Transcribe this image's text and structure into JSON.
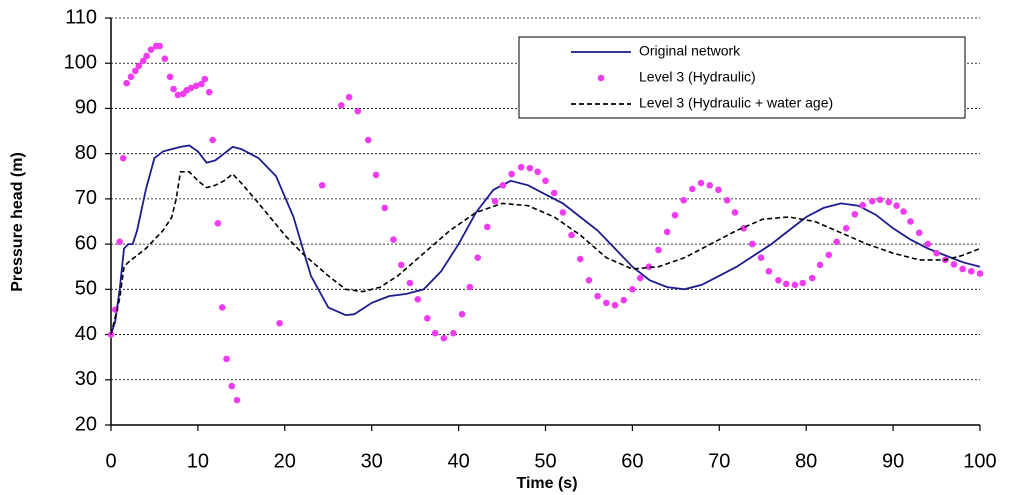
{
  "chart_data": {
    "type": "line",
    "x_label": "Time (s)",
    "y_label": "Pressure head (m)",
    "xlim": [
      0,
      100
    ],
    "xticks": [
      0,
      10,
      20,
      30,
      40,
      50,
      60,
      70,
      80,
      90,
      100
    ],
    "ylim": [
      20,
      110
    ],
    "yticks": [
      20,
      30,
      40,
      50,
      60,
      70,
      80,
      90,
      100,
      110
    ],
    "grid": true,
    "legend": "upper right",
    "series": [
      {
        "name": "Original network",
        "color": "#1c1c8c",
        "style": "solid",
        "x": [
          0,
          0.5,
          1,
          1.5,
          2,
          2.5,
          3,
          4,
          5,
          6,
          7,
          8,
          9,
          10,
          11,
          12,
          13,
          14,
          15,
          17,
          19,
          21,
          23,
          25,
          27,
          28,
          30,
          32,
          34,
          36,
          38,
          40,
          42,
          44,
          46,
          48,
          50,
          52,
          54,
          56,
          58,
          60,
          62,
          64,
          66,
          68,
          70,
          72,
          74,
          76,
          78,
          80,
          82,
          84,
          86,
          88,
          90,
          92,
          94,
          96,
          98,
          100
        ],
        "values": [
          40,
          43,
          50,
          59,
          60,
          60,
          63,
          72,
          79,
          80.5,
          81,
          81.5,
          81.8,
          80.5,
          78,
          78.5,
          80,
          81.5,
          81,
          79,
          75,
          66,
          53,
          46,
          44.3,
          44.5,
          47,
          48.5,
          49,
          50,
          54,
          60,
          67,
          72,
          74,
          73,
          71,
          69,
          66,
          63,
          59,
          55,
          52,
          50.5,
          50,
          51,
          53,
          55,
          57.5,
          60,
          63,
          66,
          68,
          69,
          68.5,
          66.5,
          63.5,
          61,
          59,
          57.5,
          56,
          55
        ]
      },
      {
        "name": "Level 3 (Hydraulic)",
        "color": "#f03cf0",
        "style": "dots",
        "x": [
          0,
          0.5,
          1,
          1.4,
          1.8,
          2.3,
          2.8,
          3.2,
          3.7,
          4.1,
          4.6,
          5.2,
          5.6,
          6.2,
          6.8,
          7.2,
          7.7,
          8.3,
          8.7,
          9.2,
          9.8,
          10.4,
          10.8,
          11.3,
          11.7,
          12.3,
          12.8,
          13.3,
          13.9,
          14.5,
          19.4,
          24.3,
          26.5,
          27.4,
          28.4,
          29.6,
          30.5,
          31.5,
          32.5,
          33.4,
          34.4,
          35.3,
          36.4,
          37.3,
          38.3,
          39.4,
          40.4,
          41.3,
          42.2,
          43.3,
          44.2,
          45.1,
          46.1,
          47.2,
          48.2,
          49.1,
          50,
          51,
          52,
          53,
          54,
          55,
          56,
          57,
          58,
          59,
          60,
          60.9,
          61.9,
          63,
          64,
          64.9,
          65.9,
          66.9,
          67.9,
          68.9,
          69.9,
          70.9,
          71.8,
          72.8,
          73.8,
          74.8,
          75.7,
          76.8,
          77.7,
          78.7,
          79.6,
          80.7,
          81.6,
          82.6,
          83.5,
          84.6,
          85.6,
          86.5,
          87.6,
          88.5,
          89.5,
          90.4,
          91.2,
          92,
          93,
          94,
          95,
          96,
          97,
          98,
          99,
          100
        ],
        "values": [
          40,
          45.5,
          60.5,
          79,
          95.6,
          97,
          98.3,
          99.4,
          100.5,
          101.6,
          103,
          103.8,
          103.8,
          101,
          97,
          94.3,
          93,
          93.2,
          94,
          94.5,
          95,
          95.4,
          96.5,
          93.6,
          83,
          64.6,
          46,
          34.6,
          28.6,
          25.5,
          42.5,
          73,
          90.7,
          92.5,
          89.4,
          83,
          75.3,
          68,
          61,
          55.4,
          51.4,
          47.8,
          43.6,
          40.3,
          39.2,
          40.3,
          44.5,
          50.5,
          57,
          63.8,
          69.5,
          73,
          75.5,
          77,
          76.8,
          76,
          74,
          71.3,
          67,
          62,
          56.7,
          52,
          48.5,
          47,
          46.5,
          47.6,
          50,
          52.5,
          55,
          58.7,
          62.7,
          66.4,
          69.7,
          72.2,
          73.5,
          73,
          72,
          69.7,
          67,
          63.5,
          60,
          57,
          54,
          52,
          51.2,
          51,
          51.4,
          52.5,
          55.4,
          57.6,
          60.5,
          63.5,
          66.6,
          68.6,
          69.5,
          69.8,
          69.3,
          68.5,
          67.2,
          65,
          62.5,
          60,
          58,
          56.5,
          55.5,
          54.5,
          54,
          53.5
        ]
      },
      {
        "name": "Level 3 (Hydraulic + water age)",
        "color": "#000000",
        "style": "dashed",
        "x": [
          0,
          1,
          1.5,
          2,
          3,
          4,
          5,
          6,
          7,
          7.5,
          8,
          9,
          10,
          11,
          12,
          13,
          14,
          15,
          17,
          20,
          22,
          25,
          27,
          29,
          31,
          33,
          36,
          39,
          42,
          45,
          48,
          51,
          54,
          57,
          60,
          63,
          66,
          69,
          72,
          75,
          78,
          81,
          84,
          87,
          90,
          93,
          96,
          98,
          100
        ],
        "values": [
          40,
          48,
          55,
          56,
          57.5,
          59,
          61,
          63,
          66,
          70,
          76,
          76,
          74,
          72.5,
          73,
          74,
          75.5,
          73.5,
          69,
          62,
          58,
          53,
          50,
          49.5,
          50.5,
          53,
          58,
          63,
          67,
          69,
          68.5,
          66,
          62,
          57,
          54.5,
          55,
          57,
          60,
          63,
          65.5,
          66,
          65,
          62.5,
          60,
          58,
          56.5,
          56.5,
          57.5,
          59
        ]
      }
    ]
  }
}
